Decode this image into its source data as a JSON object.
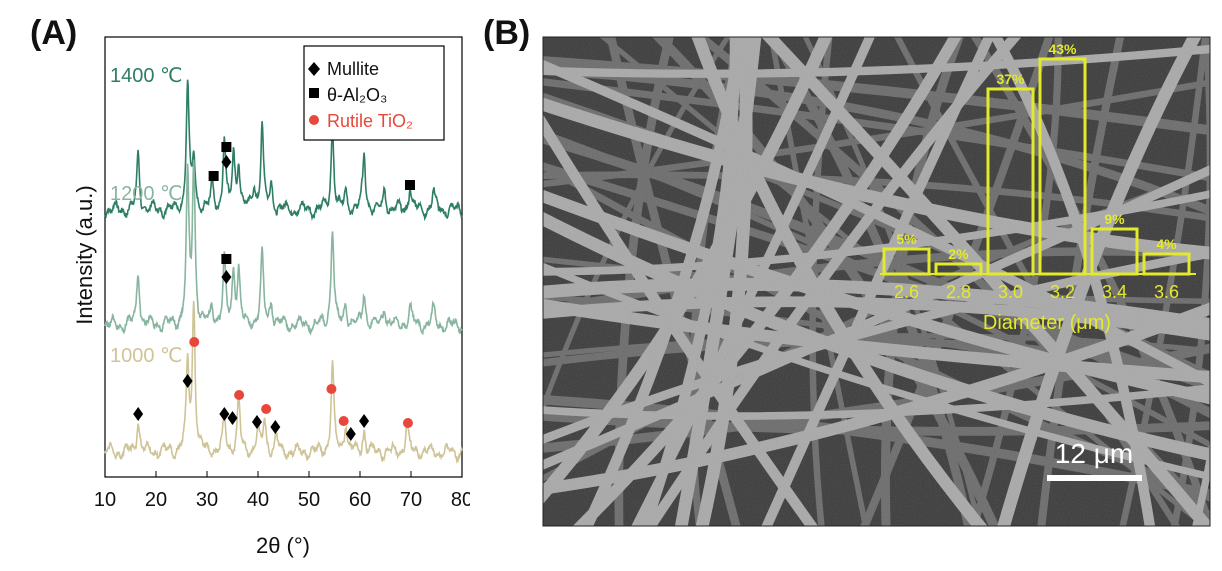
{
  "panels": {
    "a_label": "(A)",
    "b_label": "(B)"
  },
  "colors": {
    "c1400": "#2e7d66",
    "c1200": "#88b59f",
    "c1000": "#cfc497",
    "rutile": "#e8473b",
    "hist": "#e3ea2a",
    "marker": "#000000"
  },
  "chart_data": [
    {
      "type": "line",
      "title": "",
      "xlabel": "2θ (°)",
      "ylabel": "Intensity (a.u.)",
      "xlim": [
        10,
        80
      ],
      "x_ticks": [
        "10",
        "20",
        "30",
        "40",
        "50",
        "60",
        "70",
        "80"
      ],
      "y_ticks_shown": false,
      "legend": {
        "placement": "top-right",
        "entries": [
          {
            "marker": "diamond",
            "label": "Mullite"
          },
          {
            "marker": "square",
            "label": "θ-Al₂O₃"
          },
          {
            "marker": "circle",
            "label": "Rutile TiO₂"
          }
        ]
      },
      "series": [
        {
          "name": "1400 ℃",
          "color_key": "c1400",
          "peaks": [
            [
              16.5,
              35
            ],
            [
              26.2,
              82
            ],
            [
              27.4,
              32
            ],
            [
              31.0,
              16
            ],
            [
              33.4,
              45
            ],
            [
              35.2,
              34
            ],
            [
              36.2,
              30
            ],
            [
              39.2,
              15
            ],
            [
              40.8,
              55
            ],
            [
              42.6,
              16
            ],
            [
              54.6,
              55
            ],
            [
              57.2,
              12
            ],
            [
              60.8,
              36
            ],
            [
              64.8,
              13
            ],
            [
              69.8,
              16
            ],
            [
              74.4,
              12
            ]
          ]
        },
        {
          "name": "1200 ℃",
          "color_key": "c1200",
          "peaks": [
            [
              16.5,
              36
            ],
            [
              26.2,
              92
            ],
            [
              27.4,
              100
            ],
            [
              31.0,
              12
            ],
            [
              33.4,
              40
            ],
            [
              35.2,
              34
            ],
            [
              36.2,
              34
            ],
            [
              40.8,
              46
            ],
            [
              42.6,
              15
            ],
            [
              54.6,
              64
            ],
            [
              57.2,
              14
            ],
            [
              60.8,
              22
            ],
            [
              64.8,
              13
            ],
            [
              69.8,
              12
            ],
            [
              74.4,
              10
            ]
          ]
        },
        {
          "name": "1000 ℃",
          "color_key": "c1000",
          "peaks": [
            [
              16.5,
              22
            ],
            [
              26.2,
              56
            ],
            [
              27.4,
              96
            ],
            [
              33.4,
              22
            ],
            [
              36.2,
              35
            ],
            [
              40.0,
              14
            ],
            [
              41.3,
              22
            ],
            [
              43.6,
              10
            ],
            [
              54.6,
              56
            ],
            [
              57.2,
              20
            ],
            [
              60.8,
              14
            ],
            [
              69.2,
              18
            ]
          ]
        }
      ],
      "markers": [
        {
          "series": "1400 ℃",
          "type": "square",
          "x": 33.8
        },
        {
          "series": "1400 ℃",
          "type": "diamond",
          "x": 33.8
        },
        {
          "series": "1400 ℃",
          "type": "square",
          "x": 31.3
        },
        {
          "series": "1400 ℃",
          "type": "square",
          "x": 69.8
        },
        {
          "series": "1200 ℃",
          "type": "square",
          "x": 33.8
        },
        {
          "series": "1200 ℃",
          "type": "diamond",
          "x": 33.8
        },
        {
          "series": "1000 ℃",
          "type": "circle",
          "x": 27.5
        },
        {
          "series": "1000 ℃",
          "type": "diamond",
          "x": 26.2
        },
        {
          "series": "1000 ℃",
          "type": "diamond",
          "x": 16.5
        },
        {
          "series": "1000 ℃",
          "type": "diamond",
          "x": 33.4
        },
        {
          "series": "1000 ℃",
          "type": "diamond",
          "x": 35.0
        },
        {
          "series": "1000 ℃",
          "type": "circle",
          "x": 36.3
        },
        {
          "series": "1000 ℃",
          "type": "diamond",
          "x": 39.8
        },
        {
          "series": "1000 ℃",
          "type": "circle",
          "x": 41.6
        },
        {
          "series": "1000 ℃",
          "type": "diamond",
          "x": 43.4
        },
        {
          "series": "1000 ℃",
          "type": "circle",
          "x": 54.4
        },
        {
          "series": "1000 ℃",
          "type": "circle",
          "x": 56.8
        },
        {
          "series": "1000 ℃",
          "type": "diamond",
          "x": 58.2
        },
        {
          "series": "1000 ℃",
          "type": "diamond",
          "x": 60.8
        },
        {
          "series": "1000 ℃",
          "type": "circle",
          "x": 69.4
        }
      ]
    },
    {
      "type": "bar",
      "title": "",
      "xlabel": "Diameter (μm)",
      "categories": [
        "2.6",
        "2.8",
        "3.0",
        "3.2",
        "3.4",
        "3.6"
      ],
      "values": [
        5,
        2,
        37,
        43,
        9,
        4
      ],
      "value_labels": [
        "5%",
        "2%",
        "37%",
        "43%",
        "9%",
        "4%"
      ],
      "ylim": [
        0,
        43
      ]
    }
  ],
  "sem": {
    "scale_bar_label": "12 μm"
  }
}
